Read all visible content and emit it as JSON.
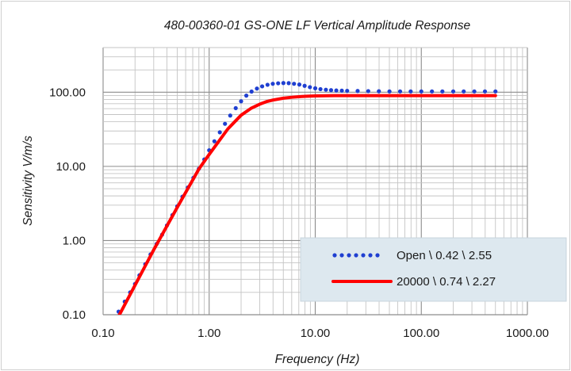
{
  "chart_data": {
    "type": "line",
    "title": "480-00360-01 GS-ONE LF Vertical Amplitude Response",
    "xlabel": "Frequency (Hz)",
    "ylabel": "Sensitivity V/m/s",
    "x_scale": "log",
    "y_scale": "log",
    "xlim": [
      0.1,
      1000
    ],
    "ylim": [
      0.1,
      400
    ],
    "x_ticks": [
      "0.10",
      "1.00",
      "10.00",
      "100.00",
      "1000.00"
    ],
    "y_ticks": [
      "0.10",
      "1.00",
      "10.00",
      "100.00"
    ],
    "grid": true,
    "legend_position": "bottom-right",
    "series": [
      {
        "name": "Open \\ 0.42 \\ 2.55",
        "style": "dotted",
        "color": "#1f3fd1",
        "x": [
          0.14,
          0.16,
          0.18,
          0.2,
          0.22,
          0.25,
          0.28,
          0.32,
          0.36,
          0.4,
          0.45,
          0.5,
          0.56,
          0.63,
          0.71,
          0.8,
          0.9,
          1.0,
          1.12,
          1.26,
          1.41,
          1.58,
          1.78,
          2.0,
          2.24,
          2.51,
          2.82,
          3.16,
          3.55,
          3.98,
          4.47,
          5.01,
          5.62,
          6.31,
          7.08,
          7.94,
          8.91,
          10.0,
          11.2,
          12.6,
          14.1,
          15.8,
          17.8,
          20.0,
          25.1,
          31.6,
          39.8,
          50.1,
          63.1,
          79.4,
          100,
          126,
          158,
          200,
          251,
          316,
          398,
          500
        ],
        "y": [
          0.11,
          0.15,
          0.2,
          0.26,
          0.34,
          0.48,
          0.65,
          0.9,
          1.2,
          1.6,
          2.2,
          2.9,
          3.9,
          5.2,
          7.0,
          9.3,
          12.4,
          16.5,
          21.8,
          28.8,
          37.5,
          48.5,
          61,
          75.5,
          90,
          102,
          112,
          120,
          126,
          130,
          132,
          133,
          132.5,
          130,
          127,
          122,
          117,
          113,
          110,
          108,
          106.5,
          105.5,
          105,
          104.5,
          104,
          103.5,
          103,
          102.5,
          102.5,
          102.5,
          102.5,
          102.5,
          102.5,
          102.5,
          102.5,
          102.5,
          102.5,
          102.5
        ]
      },
      {
        "name": "20000 \\ 0.74 \\ 2.27",
        "style": "solid",
        "color": "#ff0000",
        "x": [
          0.14,
          0.2,
          0.3,
          0.5,
          0.8,
          1.0,
          1.5,
          2.0,
          2.5,
          3.0,
          3.5,
          4.0,
          5.0,
          6.0,
          7.0,
          8.0,
          10.0,
          15,
          20,
          30,
          50,
          100,
          200,
          500
        ],
        "y": [
          0.095,
          0.25,
          0.75,
          2.8,
          9.2,
          14.5,
          32,
          49,
          61,
          69,
          75,
          78.5,
          83,
          85.5,
          87,
          88,
          89,
          90,
          90,
          90,
          90,
          90,
          90,
          90
        ]
      }
    ]
  }
}
